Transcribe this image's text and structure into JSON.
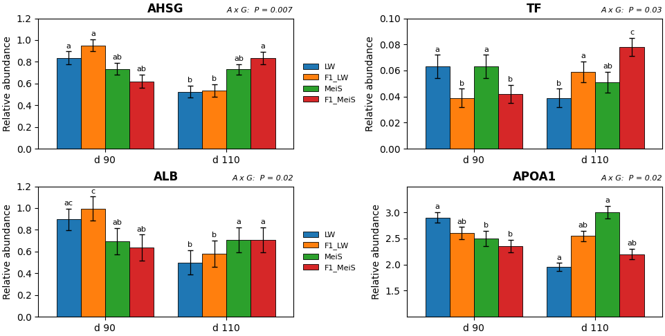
{
  "chart_data": [
    {
      "type": "bar",
      "title": "AHSG",
      "subtitle": "A x G:  P = 0.007",
      "ylabel": "Relative abundance",
      "categories": [
        "d 90",
        "d 110"
      ],
      "series": [
        {
          "name": "LW",
          "values": [
            0.835,
            0.525
          ],
          "errors": [
            0.06,
            0.055
          ],
          "letters": [
            "a",
            "b"
          ]
        },
        {
          "name": "F1_LW",
          "values": [
            0.95,
            0.535
          ],
          "errors": [
            0.055,
            0.06
          ],
          "letters": [
            "a",
            "b"
          ]
        },
        {
          "name": "MeiS",
          "values": [
            0.735,
            0.73
          ],
          "errors": [
            0.055,
            0.05
          ],
          "letters": [
            "ab",
            "ab"
          ]
        },
        {
          "name": "F1_MeiS",
          "values": [
            0.62,
            0.835
          ],
          "errors": [
            0.06,
            0.055
          ],
          "letters": [
            "ab",
            "a"
          ]
        }
      ],
      "ylim": [
        0,
        1.2
      ],
      "yticks": [
        {
          "value": 0,
          "label": "0.0"
        },
        0.2,
        0.4,
        0.6,
        0.8,
        {
          "value": 1.0,
          "label": "1.0"
        },
        1.2
      ],
      "grid": false,
      "legend": "center right"
    },
    {
      "type": "bar",
      "title": "TF",
      "subtitle": "A x G:  P = 0.03",
      "ylabel": "Relative abundance",
      "categories": [
        "d 90",
        "d 110"
      ],
      "series": [
        {
          "name": "LW",
          "values": [
            0.063,
            0.039
          ],
          "errors": [
            0.009,
            0.007
          ],
          "letters": [
            "a",
            "b"
          ]
        },
        {
          "name": "F1_LW",
          "values": [
            0.039,
            0.059
          ],
          "errors": [
            0.007,
            0.008
          ],
          "letters": [
            "b",
            "a"
          ]
        },
        {
          "name": "MeiS",
          "values": [
            0.063,
            0.051
          ],
          "errors": [
            0.009,
            0.008
          ],
          "letters": [
            "a",
            "ab"
          ]
        },
        {
          "name": "F1_MeiS",
          "values": [
            0.042,
            0.078
          ],
          "errors": [
            0.007,
            0.007
          ],
          "letters": [
            "b",
            "c"
          ]
        }
      ],
      "ylim": [
        0,
        0.1
      ],
      "yticks": [
        {
          "value": 0,
          "label": "0.00"
        },
        0.02,
        0.04,
        0.06,
        0.08,
        {
          "value": 0.1,
          "label": "0.10"
        }
      ],
      "grid": false
    },
    {
      "type": "bar",
      "title": "ALB",
      "subtitle": "A x G:  P = 0.02",
      "ylabel": "Relative abundance",
      "categories": [
        "d 90",
        "d 110"
      ],
      "series": [
        {
          "name": "LW",
          "values": [
            0.895,
            0.5
          ],
          "errors": [
            0.1,
            0.11
          ],
          "letters": [
            "ac",
            "b"
          ]
        },
        {
          "name": "F1_LW",
          "values": [
            0.995,
            0.58
          ],
          "errors": [
            0.11,
            0.12
          ],
          "letters": [
            "c",
            "b"
          ]
        },
        {
          "name": "MeiS",
          "values": [
            0.695,
            0.705
          ],
          "errors": [
            0.12,
            0.115
          ],
          "letters": [
            "ab",
            "a"
          ]
        },
        {
          "name": "F1_MeiS",
          "values": [
            0.635,
            0.705
          ],
          "errors": [
            0.12,
            0.115
          ],
          "letters": [
            "ab",
            "a"
          ]
        }
      ],
      "ylim": [
        0,
        1.2
      ],
      "yticks": [
        {
          "value": 0,
          "label": "0.0"
        },
        0.2,
        0.4,
        0.6,
        0.8,
        {
          "value": 1.0,
          "label": "1.0"
        },
        1.2
      ],
      "grid": false,
      "legend": "center right"
    },
    {
      "type": "bar",
      "title": "APOA1",
      "subtitle": "A x G:  P = 0.02",
      "ylabel": "Relative abundance",
      "categories": [
        "d 90",
        "d 110"
      ],
      "series": [
        {
          "name": "LW",
          "values": [
            2.9,
            1.95
          ],
          "errors": [
            0.1,
            0.08
          ],
          "letters": [
            "a",
            "a"
          ]
        },
        {
          "name": "F1_LW",
          "values": [
            2.6,
            2.55
          ],
          "errors": [
            0.12,
            0.1
          ],
          "letters": [
            "ab",
            "ab"
          ]
        },
        {
          "name": "MeiS",
          "values": [
            2.5,
            3.0
          ],
          "errors": [
            0.15,
            0.12
          ],
          "letters": [
            "b",
            "a"
          ]
        },
        {
          "name": "F1_MeiS",
          "values": [
            2.35,
            2.2
          ],
          "errors": [
            0.12,
            0.1
          ],
          "letters": [
            "b",
            "ab"
          ]
        }
      ],
      "ylim": [
        1.0,
        3.5
      ],
      "yticks": [
        1.5,
        {
          "value": 2.0,
          "label": "2.0"
        },
        2.5,
        {
          "value": 3.0,
          "label": "3.0"
        }
      ],
      "grid": false
    }
  ]
}
